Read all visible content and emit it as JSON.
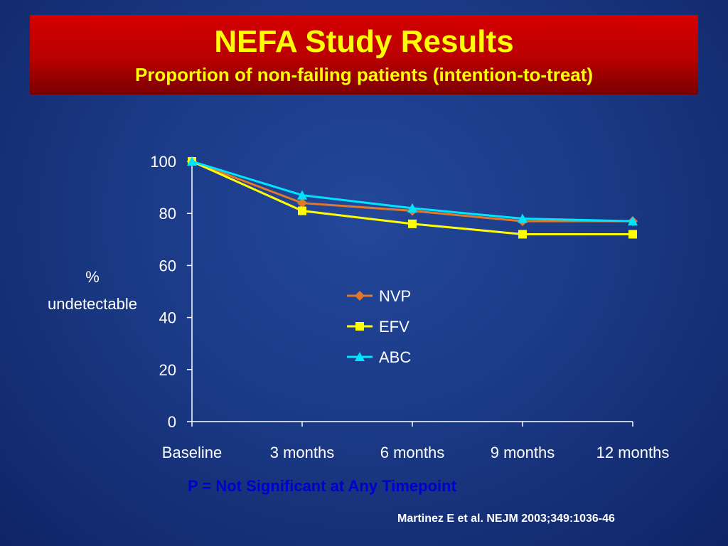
{
  "slide": {
    "title": "NEFA Study Results",
    "subtitle": "Proportion of non-failing patients (intention-to-treat)",
    "footnote": "P = Not Significant at Any Timepoint",
    "citation": "Martinez E et  al. NEJM 2003;349:1036-46"
  },
  "chart_data": {
    "type": "line",
    "title": "",
    "xlabel": "",
    "ylabel_lines": [
      "%",
      "undetectable"
    ],
    "categories": [
      "Baseline",
      "3 months",
      "6 months",
      "9 months",
      "12 months"
    ],
    "ylim": [
      0,
      100
    ],
    "yticks": [
      "0",
      "20",
      "40",
      "60",
      "80",
      "100"
    ],
    "grid": false,
    "legend_position": "center",
    "series": [
      {
        "name": "NVP",
        "values": [
          100,
          84,
          81,
          77,
          77
        ],
        "color": "#e07a2a",
        "marker": "diamond"
      },
      {
        "name": "EFV",
        "values": [
          100,
          81,
          76,
          72,
          72
        ],
        "color": "#ffff00",
        "marker": "square"
      },
      {
        "name": "ABC",
        "values": [
          100,
          87,
          82,
          78,
          77
        ],
        "color": "#00e5ff",
        "marker": "triangle"
      }
    ]
  }
}
